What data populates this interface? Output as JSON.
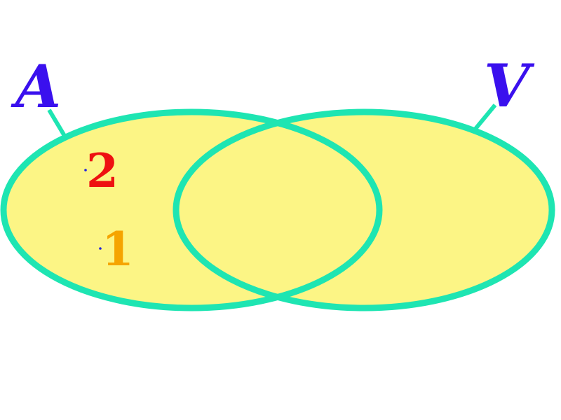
{
  "colors": {
    "background": "#ffffff",
    "set_fill": "#fcf585",
    "set_stroke": "#1ee5b2",
    "set_label": "#3a10ee",
    "element_1": "#f5a400",
    "element_2": "#ee1111",
    "element_dot": "#2222dd"
  },
  "sets": [
    {
      "label": "A"
    },
    {
      "label": "V"
    }
  ],
  "elements": [
    {
      "label": "2",
      "set": "A"
    },
    {
      "label": "1",
      "set": "A"
    }
  ]
}
